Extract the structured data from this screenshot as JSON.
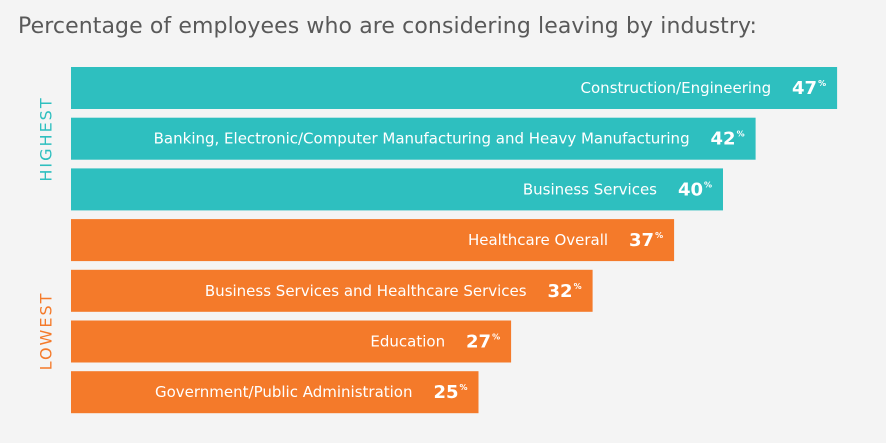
{
  "title": "Percentage of employees who are considering leaving by industry:",
  "group_labels": {
    "highest": "HIGHEST",
    "lowest": "LOWEST"
  },
  "colors": {
    "highest": "#2ebfbf",
    "lowest": "#f47a2a",
    "background": "#f4f4f4",
    "title_text": "#595959"
  },
  "chart_data": {
    "type": "bar",
    "orientation": "horizontal",
    "title": "Percentage of employees who are considering leaving by industry:",
    "xlabel": "",
    "ylabel": "",
    "unit": "%",
    "categories": [
      "Construction/Engineering",
      "Banking, Electronic/Computer Manufacturing and Heavy Manufacturing",
      "Business Services",
      "Healthcare Overall",
      "Business Services and Healthcare Services",
      "Education",
      "Government/Public Administration"
    ],
    "values": [
      47,
      42,
      40,
      37,
      32,
      27,
      25
    ],
    "groups": [
      "highest",
      "highest",
      "highest",
      "lowest",
      "lowest",
      "lowest",
      "lowest"
    ],
    "grid": false,
    "legend": "none"
  }
}
